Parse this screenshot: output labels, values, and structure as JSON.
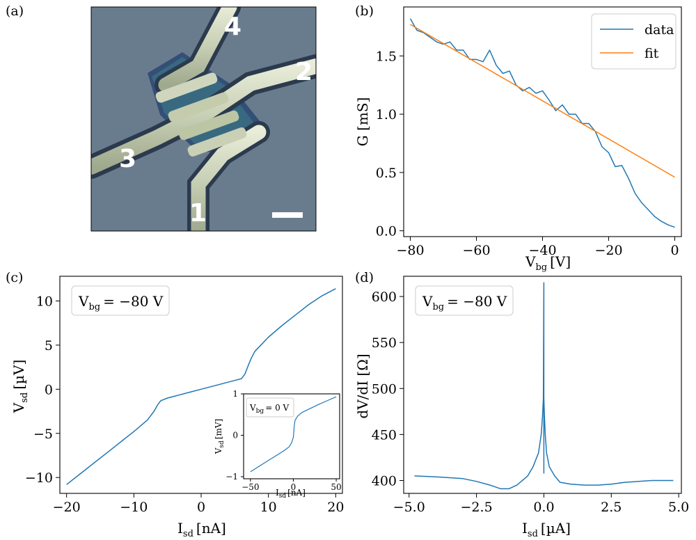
{
  "panel_labels": [
    "(a)",
    "(b)",
    "(c)",
    "(d)"
  ],
  "photo": {
    "contact_labels": [
      "1",
      "2",
      "3",
      "4"
    ]
  },
  "colors": {
    "data": "#1f77b4",
    "fit": "#ff7f0e"
  },
  "chart_data": [
    {
      "id": "b",
      "type": "line",
      "xlabel_main": "V",
      "xlabel_sub": "bg",
      "xlabel_unit": "[V]",
      "ylabel": "G [mS]",
      "xlim": [
        -82,
        2
      ],
      "ylim": [
        -0.05,
        1.92
      ],
      "xticks": [
        -80,
        -60,
        -40,
        -20,
        0
      ],
      "xtick_labels": [
        "−80",
        "−60",
        "−40",
        "−20",
        "0"
      ],
      "yticks": [
        0.0,
        0.5,
        1.0,
        1.5
      ],
      "ytick_labels": [
        "0.0",
        "0.5",
        "1.0",
        "1.5"
      ],
      "legend": [
        "data",
        "fit"
      ],
      "legend_position": "top-right",
      "series": [
        {
          "name": "data",
          "x": [
            -80,
            -78,
            -76,
            -74,
            -72,
            -70,
            -68,
            -66,
            -64,
            -62,
            -60,
            -58,
            -56,
            -54,
            -52,
            -50,
            -48,
            -46,
            -44,
            -42,
            -40,
            -38,
            -36,
            -34,
            -32,
            -30,
            -28,
            -26,
            -24,
            -22,
            -20,
            -18,
            -16,
            -14,
            -12,
            -10,
            -8,
            -6,
            -4,
            -2,
            0
          ],
          "y": [
            1.82,
            1.72,
            1.7,
            1.66,
            1.62,
            1.6,
            1.62,
            1.55,
            1.55,
            1.47,
            1.47,
            1.45,
            1.55,
            1.42,
            1.35,
            1.37,
            1.25,
            1.2,
            1.23,
            1.18,
            1.2,
            1.12,
            1.03,
            1.08,
            1.0,
            1.0,
            0.92,
            0.92,
            0.85,
            0.72,
            0.67,
            0.55,
            0.56,
            0.45,
            0.32,
            0.24,
            0.18,
            0.12,
            0.08,
            0.05,
            0.03
          ]
        },
        {
          "name": "fit",
          "x": [
            -80,
            0
          ],
          "y": [
            1.77,
            0.46
          ]
        }
      ]
    },
    {
      "id": "c",
      "type": "line",
      "xlabel_main": "I",
      "xlabel_sub": "sd",
      "xlabel_unit": "[nA]",
      "ylabel_main": "V",
      "ylabel_sub": "sd",
      "ylabel_unit": "[µV]",
      "xlim": [
        -21,
        21
      ],
      "ylim": [
        -11.8,
        12.8
      ],
      "xticks": [
        -20,
        -10,
        0,
        10,
        20
      ],
      "xtick_labels": [
        "−20",
        "−10",
        "0",
        "10",
        "20"
      ],
      "yticks": [
        -10,
        -5,
        0,
        5,
        10
      ],
      "ytick_labels": [
        "−10",
        "−5",
        "0",
        "5",
        "10"
      ],
      "annotation": {
        "main": "V",
        "sub": "bg",
        "value": "= −80 V"
      },
      "series": [
        {
          "x": [
            -20,
            -18,
            -16,
            -14,
            -12,
            -10,
            -8,
            -7,
            -6.5,
            -6,
            -5,
            -4,
            -2,
            0,
            2,
            4,
            5,
            6,
            6.5,
            7,
            7.5,
            8,
            10,
            12,
            14,
            16,
            18,
            20
          ],
          "y": [
            -10.8,
            -9.6,
            -8.4,
            -7.2,
            -6.0,
            -4.8,
            -3.5,
            -2.5,
            -1.8,
            -1.3,
            -1.0,
            -0.8,
            -0.4,
            0,
            0.4,
            0.8,
            1.0,
            1.2,
            1.7,
            2.7,
            3.6,
            4.3,
            5.9,
            7.2,
            8.4,
            9.6,
            10.6,
            11.4
          ]
        }
      ],
      "inset": {
        "type": "line",
        "xlabel_main": "I",
        "xlabel_sub": "sd",
        "xlabel_unit": "[nA]",
        "ylabel_main": "V",
        "ylabel_sub": "sd",
        "ylabel_unit": "[mV]",
        "xlim": [
          -58,
          54
        ],
        "ylim": [
          -1.05,
          1.0
        ],
        "xticks": [
          -50,
          0,
          50
        ],
        "xtick_labels": [
          "−50",
          "0",
          "50"
        ],
        "yticks": [
          -1,
          0,
          1
        ],
        "ytick_labels": [
          "−1",
          "0",
          "1"
        ],
        "annotation": {
          "main": "V",
          "sub": "bg",
          "value": "= 0 V"
        },
        "series": [
          {
            "x": [
              -50,
              -40,
              -30,
              -20,
              -10,
              -5,
              -2,
              0,
              1,
              2,
              5,
              10,
              20,
              30,
              40,
              50
            ],
            "y": [
              -0.88,
              -0.75,
              -0.62,
              -0.49,
              -0.36,
              -0.28,
              -0.18,
              -0.05,
              0.22,
              0.36,
              0.46,
              0.55,
              0.65,
              0.75,
              0.84,
              0.93
            ]
          }
        ]
      }
    },
    {
      "id": "d",
      "type": "line",
      "xlabel_main": "I",
      "xlabel_sub": "sd",
      "xlabel_unit": "[µA]",
      "ylabel": "dV/dI [Ω]",
      "xlim": [
        -5.2,
        5.1
      ],
      "ylim": [
        386,
        622
      ],
      "xticks": [
        -5.0,
        -2.5,
        0.0,
        2.5,
        5.0
      ],
      "xtick_labels": [
        "−5.0",
        "−2.5",
        "0.0",
        "2.5",
        "5.0"
      ],
      "yticks": [
        400,
        450,
        500,
        550,
        600
      ],
      "ytick_labels": [
        "400",
        "450",
        "500",
        "550",
        "600"
      ],
      "annotation": {
        "main": "V",
        "sub": "bg",
        "value": "= −80 V"
      },
      "series": [
        {
          "x": [
            -4.8,
            -4.0,
            -3.0,
            -2.5,
            -2.0,
            -1.6,
            -1.3,
            -1.0,
            -0.6,
            -0.4,
            -0.2,
            -0.1,
            -0.05,
            -0.02,
            0,
            0,
            0,
            0.02,
            0.05,
            0.1,
            0.2,
            0.4,
            0.6,
            1.0,
            1.5,
            2.0,
            2.5,
            3.0,
            4.0,
            4.8
          ],
          "y": [
            405,
            404,
            402,
            399,
            395,
            391,
            391,
            395,
            405,
            415,
            430,
            450,
            470,
            490,
            615,
            408,
            490,
            470,
            450,
            430,
            415,
            405,
            398,
            396,
            395,
            395,
            396,
            398,
            400,
            400
          ]
        }
      ]
    }
  ]
}
